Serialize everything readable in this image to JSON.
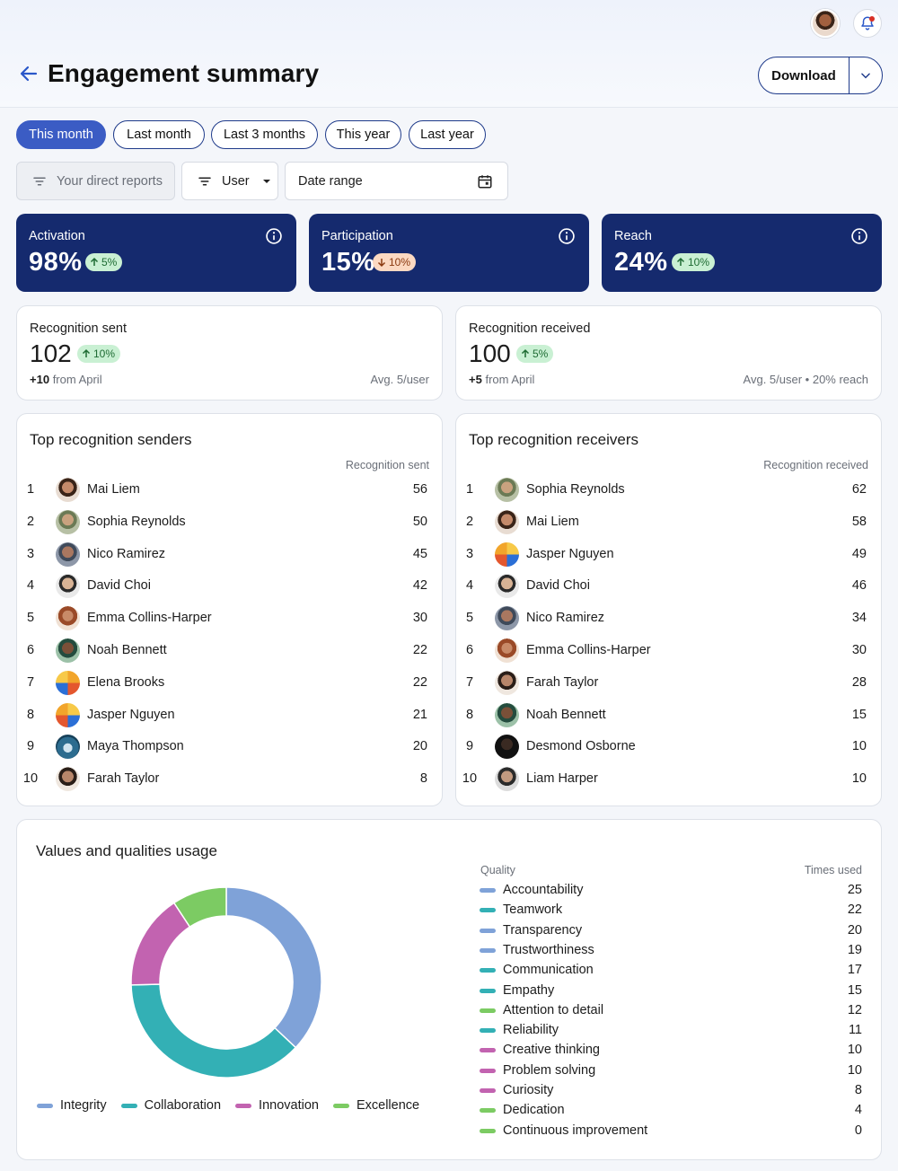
{
  "header": {
    "title": "Engagement summary",
    "download_label": "Download"
  },
  "periods": [
    "This month",
    "Last month",
    "Last 3 months",
    "This year",
    "Last year"
  ],
  "filters": {
    "reports": "Your direct reports",
    "user": "User",
    "date_range": "Date range"
  },
  "kpis": [
    {
      "label": "Activation",
      "value": "98%",
      "change": "5%",
      "direction": "up"
    },
    {
      "label": "Participation",
      "value": "15%",
      "change": "10%",
      "direction": "down"
    },
    {
      "label": "Reach",
      "value": "24%",
      "change": "10%",
      "direction": "up"
    }
  ],
  "sent": {
    "label": "Recognition sent",
    "value": "102",
    "change": "10%",
    "delta": "+10",
    "from": "from April",
    "avg": "Avg. 5/user"
  },
  "received": {
    "label": "Recognition received",
    "value": "100",
    "change": "5%",
    "delta": "+5",
    "from": "from April",
    "avg": "Avg. 5/user • 20% reach"
  },
  "senders": {
    "title": "Top recognition senders",
    "col": "Recognition sent",
    "rows": [
      {
        "rank": "1",
        "name": "Mai Liem",
        "value": "56"
      },
      {
        "rank": "2",
        "name": "Sophia Reynolds",
        "value": "50"
      },
      {
        "rank": "3",
        "name": "Nico Ramirez",
        "value": "45"
      },
      {
        "rank": "4",
        "name": "David Choi",
        "value": "42"
      },
      {
        "rank": "5",
        "name": "Emma Collins-Harper",
        "value": "30"
      },
      {
        "rank": "6",
        "name": "Noah Bennett",
        "value": "22"
      },
      {
        "rank": "7",
        "name": "Elena Brooks",
        "value": "22"
      },
      {
        "rank": "8",
        "name": "Jasper Nguyen",
        "value": "21"
      },
      {
        "rank": "9",
        "name": "Maya Thompson",
        "value": "20"
      },
      {
        "rank": "10",
        "name": "Farah Taylor",
        "value": "8"
      }
    ]
  },
  "receivers": {
    "title": "Top recognition receivers",
    "col": "Recognition received",
    "rows": [
      {
        "rank": "1",
        "name": "Sophia Reynolds",
        "value": "62"
      },
      {
        "rank": "2",
        "name": "Mai Liem",
        "value": "58"
      },
      {
        "rank": "3",
        "name": "Jasper Nguyen",
        "value": "49"
      },
      {
        "rank": "4",
        "name": "David Choi",
        "value": "46"
      },
      {
        "rank": "5",
        "name": "Nico Ramirez",
        "value": "34"
      },
      {
        "rank": "6",
        "name": "Emma Collins-Harper",
        "value": "30"
      },
      {
        "rank": "7",
        "name": "Farah Taylor",
        "value": "28"
      },
      {
        "rank": "8",
        "name": "Noah Bennett",
        "value": "15"
      },
      {
        "rank": "9",
        "name": "Desmond Osborne",
        "value": "10"
      },
      {
        "rank": "10",
        "name": "Liam Harper",
        "value": "10"
      }
    ]
  },
  "values": {
    "title": "Values and qualities usage",
    "col_quality": "Quality",
    "col_times": "Times used",
    "groups": [
      {
        "name": "Integrity",
        "color": "#7fa2d8"
      },
      {
        "name": "Collaboration",
        "color": "#33b0b5"
      },
      {
        "name": "Innovation",
        "color": "#c263b0"
      },
      {
        "name": "Excellence",
        "color": "#7ccb63"
      }
    ],
    "qualities": [
      {
        "name": "Accountability",
        "value": "25",
        "group": 0
      },
      {
        "name": "Teamwork",
        "value": "22",
        "group": 1
      },
      {
        "name": "Transparency",
        "value": "20",
        "group": 0
      },
      {
        "name": "Trustworthiness",
        "value": "19",
        "group": 0
      },
      {
        "name": "Communication",
        "value": "17",
        "group": 1
      },
      {
        "name": "Empathy",
        "value": "15",
        "group": 1
      },
      {
        "name": "Attention to detail",
        "value": "12",
        "group": 3
      },
      {
        "name": "Reliability",
        "value": "11",
        "group": 1
      },
      {
        "name": "Creative thinking",
        "value": "10",
        "group": 2
      },
      {
        "name": "Problem solving",
        "value": "10",
        "group": 2
      },
      {
        "name": "Curiosity",
        "value": "8",
        "group": 2
      },
      {
        "name": "Dedication",
        "value": "4",
        "group": 3
      },
      {
        "name": "Continuous improvement",
        "value": "0",
        "group": 3
      }
    ]
  },
  "chart_data": {
    "type": "pie",
    "categories": [
      "Integrity",
      "Collaboration",
      "Innovation",
      "Excellence"
    ],
    "values": [
      64,
      65,
      28,
      16
    ]
  }
}
